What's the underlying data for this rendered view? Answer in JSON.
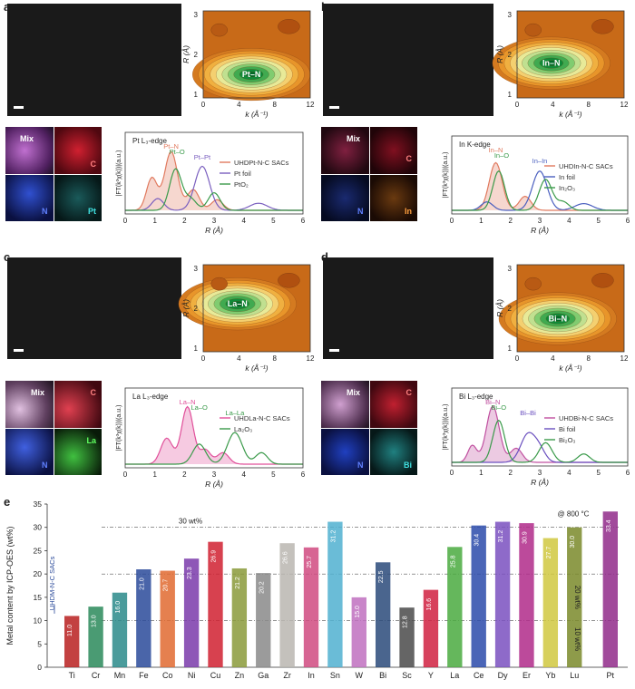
{
  "panels": [
    {
      "letter": "a",
      "element": "Pt",
      "bond": "Pt–N",
      "edge": "Pt L₃-edge",
      "legend": [
        "UHDPt-N-C SACs",
        "Pt foil",
        "PtO₂"
      ],
      "peaks": [
        "Pt–N",
        "Pt–O",
        "Pt–Pt"
      ],
      "eds": [
        "Mix",
        "C",
        "N",
        "Pt"
      ],
      "colors": [
        "#e07a5f",
        "#7a5fbf",
        "#3a9a4a"
      ],
      "eds_colors": [
        "#b04fb0",
        "#c8203a",
        "#2a3fbf",
        "#20b0b0"
      ]
    },
    {
      "letter": "b",
      "element": "In",
      "bond": "In–N",
      "edge": "In K-edge",
      "legend": [
        "UHDIn-N-C SACs",
        "In foil",
        "In₂O₃"
      ],
      "peaks": [
        "In–N",
        "In–O",
        "In–In"
      ],
      "eds": [
        "Mix",
        "C",
        "N",
        "In"
      ],
      "colors": [
        "#e07a5f",
        "#4a5fbf",
        "#3a9a4a"
      ],
      "eds_colors": [
        "#a0204a",
        "#b8203a",
        "#2a3fbf",
        "#e0801a"
      ]
    },
    {
      "letter": "c",
      "element": "La",
      "bond": "La–N",
      "edge": "La L₃-edge",
      "legend": [
        "UHDLa-N-C SACs",
        "La₂O₃"
      ],
      "peaks": [
        "La–N",
        "La–O",
        "La–La"
      ],
      "eds": [
        "Mix",
        "C",
        "N",
        "La"
      ],
      "colors": [
        "#e0509a",
        "#3a9a4a"
      ],
      "eds_colors": [
        "#c080c0",
        "#c8203a",
        "#2a3fbf",
        "#30b030"
      ]
    },
    {
      "letter": "d",
      "element": "Bi",
      "bond": "Bi–N",
      "edge": "Bi L₃-edge",
      "legend": [
        "UHDBi-N-C SACs",
        "Bi foil",
        "Bi₂O₃"
      ],
      "peaks": [
        "Bi–N",
        "Bi–O",
        "Bi–Bi"
      ],
      "eds": [
        "Mix",
        "C",
        "N",
        "Bi"
      ],
      "colors": [
        "#c050a0",
        "#6a4fbf",
        "#3a9a4a"
      ],
      "eds_colors": [
        "#b07ab0",
        "#c8203a",
        "#2a3fbf",
        "#20b0b0"
      ]
    }
  ],
  "wt_axis": {
    "xlabel": "k (Å⁻¹)",
    "ylabel": "R (Å)",
    "xticks": [
      "0",
      "4",
      "8",
      "12"
    ],
    "yticks": [
      "1",
      "2",
      "3"
    ]
  },
  "ft_axis": {
    "xlabel": "R (Å)",
    "ylabel": "|FT(k³χ(k))|(a.u.)",
    "xticks": [
      "0",
      "1",
      "2",
      "3",
      "4",
      "5",
      "6"
    ]
  },
  "panel_e": {
    "letter": "e"
  },
  "chart_data": {
    "type": "bar",
    "categories": [
      "Ti",
      "Cr",
      "Mn",
      "Fe",
      "Co",
      "Ni",
      "Cu",
      "Zn",
      "Ga",
      "Zr",
      "In",
      "Sn",
      "W",
      "Bi",
      "Sc",
      "Y",
      "La",
      "Ce",
      "Dy",
      "Er",
      "Yb",
      "Lu",
      "Pt"
    ],
    "values": [
      11.0,
      13.0,
      16.0,
      21.0,
      20.7,
      23.3,
      26.9,
      21.2,
      20.2,
      26.6,
      25.7,
      31.2,
      15.0,
      22.5,
      12.8,
      16.6,
      25.8,
      30.4,
      31.2,
      30.9,
      27.7,
      30.0,
      33.4
    ],
    "labels": [
      "11.0",
      "13.0",
      "16.0",
      "21.0",
      "20.7",
      "23.3",
      "26.9",
      "21.2",
      "20.2",
      "26.6",
      "25.7",
      "31.2",
      "15.0",
      "22.5",
      "12.8",
      "16.6",
      "25.8",
      "30.4",
      "31.2",
      "30.9",
      "27.7",
      "30.0",
      "33.4"
    ],
    "colors": [
      "#b82020",
      "#2a8a5a",
      "#2a8a8a",
      "#2a4a9a",
      "#e06a30",
      "#7a3aaa",
      "#d02030",
      "#8a9a3a",
      "#8a8a8a",
      "#bab6b0",
      "#d04a80",
      "#50b0d0",
      "#c070c0",
      "#2a4a7a",
      "#4a4a4a",
      "#d02040",
      "#4aaa40",
      "#2a4aaa",
      "#7a50c0",
      "#b02a8a",
      "#d0c840",
      "#7a8a2a",
      "#902a8a"
    ],
    "ylabel": "Metal content by ICP-OES (wt%)",
    "ylim": [
      0,
      35
    ],
    "yticks": [
      0,
      5,
      10,
      15,
      20,
      25,
      30,
      35
    ],
    "ref_lines": [
      10,
      20,
      30
    ],
    "annotations": {
      "wt30": "30 wt%",
      "wt20": "20 wt%",
      "wt10": "10 wt%",
      "temp": "@ 800 °C",
      "sample": "UHDM-N-C SACs"
    }
  }
}
